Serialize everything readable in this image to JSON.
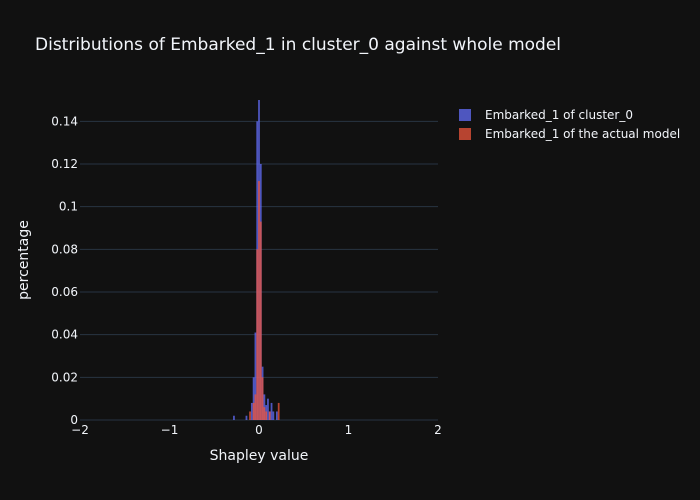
{
  "chart_data": {
    "type": "bar",
    "title": "Distributions of Embarked_1 in cluster_0 against whole model",
    "xlabel": "Shapley value",
    "ylabel": "percentage",
    "xlim": [
      -2,
      2
    ],
    "ylim": [
      0,
      0.15
    ],
    "x_ticks": [
      -2,
      -1,
      0,
      1,
      2
    ],
    "x_tick_labels": [
      "−2",
      "−1",
      "0",
      "1",
      "2"
    ],
    "y_ticks": [
      0,
      0.02,
      0.04,
      0.06,
      0.08,
      0.1,
      0.12,
      0.14
    ],
    "y_tick_labels": [
      "0",
      "0.02",
      "0.04",
      "0.06",
      "0.08",
      "0.1",
      "0.12",
      "0.14"
    ],
    "grid": true,
    "legend_position": "top-right",
    "bin_width": 0.02,
    "series": [
      {
        "name": "Embarked_1 of cluster_0",
        "color": "#636efa",
        "opacity": 0.75,
        "bins": [
          {
            "x": -0.28,
            "y": 0.002
          },
          {
            "x": -0.14,
            "y": 0.002
          },
          {
            "x": -0.08,
            "y": 0.008
          },
          {
            "x": -0.06,
            "y": 0.02
          },
          {
            "x": -0.04,
            "y": 0.041
          },
          {
            "x": -0.02,
            "y": 0.14
          },
          {
            "x": 0.0,
            "y": 0.15
          },
          {
            "x": 0.02,
            "y": 0.12
          },
          {
            "x": 0.04,
            "y": 0.025
          },
          {
            "x": 0.06,
            "y": 0.012
          },
          {
            "x": 0.08,
            "y": 0.007
          },
          {
            "x": 0.1,
            "y": 0.01
          },
          {
            "x": 0.12,
            "y": 0.004
          },
          {
            "x": 0.14,
            "y": 0.008
          },
          {
            "x": 0.16,
            "y": 0.004
          },
          {
            "x": 0.2,
            "y": 0.004
          }
        ]
      },
      {
        "name": "Embarked_1 of the actual model",
        "color": "#ef553b",
        "opacity": 0.75,
        "bins": [
          {
            "x": -0.1,
            "y": 0.004
          },
          {
            "x": -0.06,
            "y": 0.008
          },
          {
            "x": -0.04,
            "y": 0.012
          },
          {
            "x": -0.02,
            "y": 0.08
          },
          {
            "x": 0.0,
            "y": 0.112
          },
          {
            "x": 0.02,
            "y": 0.093
          },
          {
            "x": 0.04,
            "y": 0.02
          },
          {
            "x": 0.06,
            "y": 0.006
          },
          {
            "x": 0.08,
            "y": 0.004
          },
          {
            "x": 0.12,
            "y": 0.004
          },
          {
            "x": 0.22,
            "y": 0.008
          }
        ]
      }
    ]
  },
  "colors": {
    "background": "#111111",
    "grid": "#283442",
    "text": "#f2f5fa"
  }
}
